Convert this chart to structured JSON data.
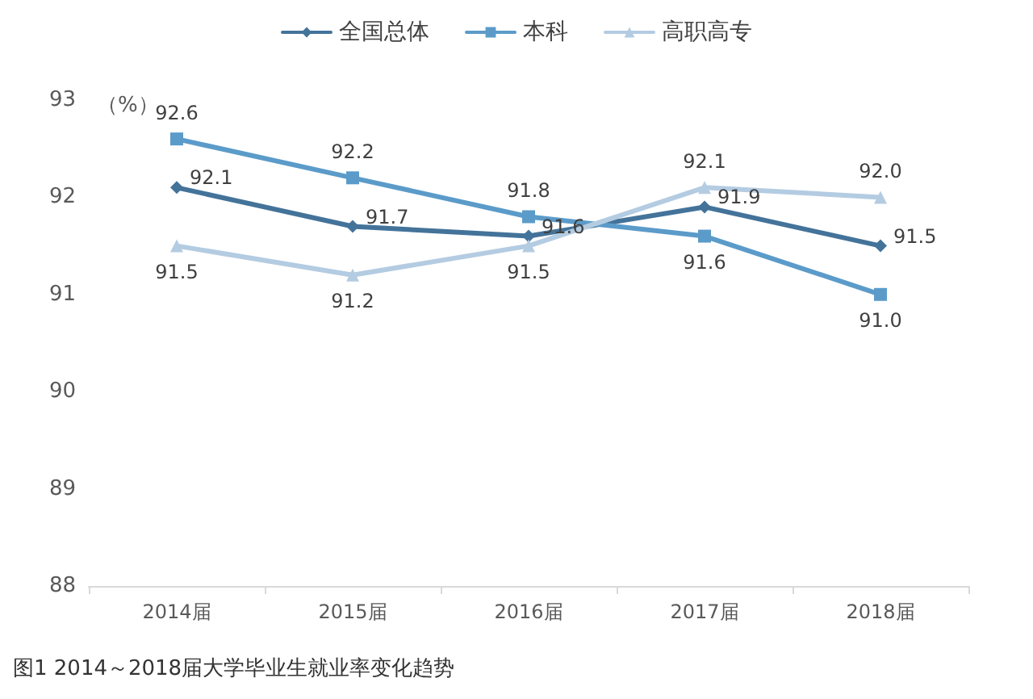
{
  "chart_data": {
    "type": "line",
    "ylabel": "（%）",
    "categories": [
      "2014届",
      "2015届",
      "2016届",
      "2017届",
      "2018届"
    ],
    "series": [
      {
        "name": "全国总体",
        "color": "#44739a",
        "marker": "diamond",
        "values": [
          92.1,
          91.7,
          91.6,
          91.9,
          91.5
        ],
        "value_labels": [
          "92.1",
          "91.7",
          "91.6",
          "91.9",
          "91.5"
        ]
      },
      {
        "name": "本科",
        "color": "#5b9bc9",
        "marker": "square",
        "values": [
          92.6,
          92.2,
          91.8,
          91.6,
          91.0
        ],
        "value_labels": [
          "92.6",
          "92.2",
          "91.8",
          "91.6",
          "91.0"
        ]
      },
      {
        "name": "高职高专",
        "color": "#b4cce2",
        "marker": "triangle",
        "values": [
          91.5,
          91.2,
          91.5,
          92.1,
          92.0
        ],
        "value_labels": [
          "91.5",
          "91.2",
          "91.5",
          "92.1",
          "92.0"
        ]
      }
    ],
    "ylim": [
      88,
      93
    ],
    "yticks": [
      88,
      89,
      90,
      91,
      92,
      93
    ],
    "grid": false,
    "legend": "top",
    "annotations": [
      "图1 2014～2018届大学毕业生就业率变化趋势"
    ]
  }
}
